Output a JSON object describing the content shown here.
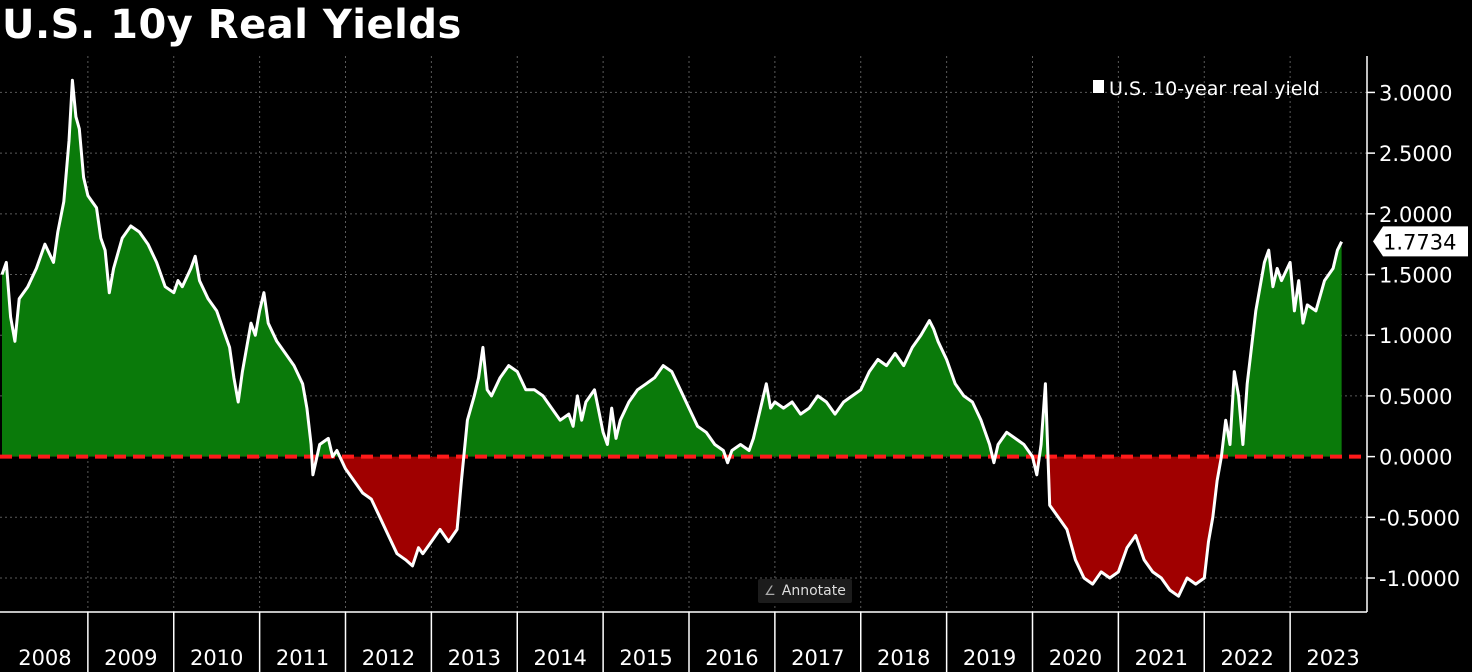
{
  "title": "U.S. 10y Real Yields",
  "annotate_label": "Annotate",
  "last_value_label": "1.7734",
  "colors": {
    "background": "#000000",
    "line": "#ffffff",
    "positive_fill": "#0a7a0a",
    "negative_fill": "#a00000",
    "zero_line": "#ff1a1a",
    "grid": "#5a5a5a"
  },
  "chart_data": {
    "type": "area",
    "title": "U.S. 10y Real Yields",
    "xlabel": "",
    "ylabel": "",
    "legend": {
      "entries": [
        "U.S. 10-year real yield"
      ],
      "position": "top-right"
    },
    "grid": true,
    "ylim": [
      -1.28,
      3.3
    ],
    "yticks": [
      3.0,
      2.5,
      2.0,
      1.5,
      1.0,
      0.5,
      0.0,
      -0.5,
      -1.0
    ],
    "ytick_labels": [
      "3.0000",
      "2.5000",
      "2.0000",
      "1.5000",
      "1.0000",
      "0.5000",
      "0.0000",
      "-0.5000",
      "-1.0000"
    ],
    "x_labels": [
      "2008",
      "2009",
      "2010",
      "2011",
      "2012",
      "2013",
      "2014",
      "2015",
      "2016",
      "2017",
      "2018",
      "2019",
      "2020",
      "2021",
      "2022",
      "2023"
    ],
    "reference_line": {
      "y": 0.0,
      "style": "dashed"
    },
    "last_value": 1.7734,
    "series": [
      {
        "name": "U.S. 10-year real yield",
        "points": [
          [
            2008.0,
            1.5
          ],
          [
            2008.05,
            1.6
          ],
          [
            2008.1,
            1.15
          ],
          [
            2008.15,
            0.95
          ],
          [
            2008.2,
            1.3
          ],
          [
            2008.3,
            1.4
          ],
          [
            2008.4,
            1.55
          ],
          [
            2008.5,
            1.75
          ],
          [
            2008.6,
            1.6
          ],
          [
            2008.65,
            1.85
          ],
          [
            2008.72,
            2.1
          ],
          [
            2008.78,
            2.6
          ],
          [
            2008.82,
            3.1
          ],
          [
            2008.86,
            2.8
          ],
          [
            2008.9,
            2.7
          ],
          [
            2008.95,
            2.3
          ],
          [
            2009.0,
            2.15
          ],
          [
            2009.05,
            2.1
          ],
          [
            2009.1,
            2.05
          ],
          [
            2009.15,
            1.8
          ],
          [
            2009.2,
            1.7
          ],
          [
            2009.25,
            1.35
          ],
          [
            2009.3,
            1.55
          ],
          [
            2009.4,
            1.8
          ],
          [
            2009.5,
            1.9
          ],
          [
            2009.6,
            1.85
          ],
          [
            2009.7,
            1.75
          ],
          [
            2009.8,
            1.6
          ],
          [
            2009.9,
            1.4
          ],
          [
            2010.0,
            1.35
          ],
          [
            2010.05,
            1.45
          ],
          [
            2010.1,
            1.4
          ],
          [
            2010.2,
            1.55
          ],
          [
            2010.25,
            1.65
          ],
          [
            2010.3,
            1.45
          ],
          [
            2010.4,
            1.3
          ],
          [
            2010.5,
            1.2
          ],
          [
            2010.6,
            1.0
          ],
          [
            2010.65,
            0.9
          ],
          [
            2010.7,
            0.65
          ],
          [
            2010.75,
            0.45
          ],
          [
            2010.8,
            0.7
          ],
          [
            2010.85,
            0.9
          ],
          [
            2010.9,
            1.1
          ],
          [
            2010.95,
            1.0
          ],
          [
            2011.0,
            1.2
          ],
          [
            2011.05,
            1.35
          ],
          [
            2011.1,
            1.1
          ],
          [
            2011.2,
            0.95
          ],
          [
            2011.3,
            0.85
          ],
          [
            2011.4,
            0.75
          ],
          [
            2011.5,
            0.6
          ],
          [
            2011.55,
            0.4
          ],
          [
            2011.6,
            0.1
          ],
          [
            2011.62,
            -0.15
          ],
          [
            2011.7,
            0.1
          ],
          [
            2011.8,
            0.15
          ],
          [
            2011.85,
            0.0
          ],
          [
            2011.9,
            0.05
          ],
          [
            2012.0,
            -0.1
          ],
          [
            2012.1,
            -0.2
          ],
          [
            2012.2,
            -0.3
          ],
          [
            2012.3,
            -0.35
          ],
          [
            2012.4,
            -0.5
          ],
          [
            2012.5,
            -0.65
          ],
          [
            2012.6,
            -0.8
          ],
          [
            2012.7,
            -0.85
          ],
          [
            2012.78,
            -0.9
          ],
          [
            2012.85,
            -0.75
          ],
          [
            2012.9,
            -0.8
          ],
          [
            2013.0,
            -0.7
          ],
          [
            2013.1,
            -0.6
          ],
          [
            2013.2,
            -0.7
          ],
          [
            2013.3,
            -0.6
          ],
          [
            2013.35,
            -0.2
          ],
          [
            2013.42,
            0.3
          ],
          [
            2013.5,
            0.5
          ],
          [
            2013.55,
            0.65
          ],
          [
            2013.6,
            0.9
          ],
          [
            2013.65,
            0.55
          ],
          [
            2013.7,
            0.5
          ],
          [
            2013.8,
            0.65
          ],
          [
            2013.9,
            0.75
          ],
          [
            2014.0,
            0.7
          ],
          [
            2014.1,
            0.55
          ],
          [
            2014.2,
            0.55
          ],
          [
            2014.3,
            0.5
          ],
          [
            2014.4,
            0.4
          ],
          [
            2014.5,
            0.3
          ],
          [
            2014.6,
            0.35
          ],
          [
            2014.65,
            0.25
          ],
          [
            2014.7,
            0.5
          ],
          [
            2014.75,
            0.3
          ],
          [
            2014.8,
            0.45
          ],
          [
            2014.9,
            0.55
          ],
          [
            2015.0,
            0.2
          ],
          [
            2015.05,
            0.1
          ],
          [
            2015.1,
            0.4
          ],
          [
            2015.15,
            0.15
          ],
          [
            2015.2,
            0.3
          ],
          [
            2015.3,
            0.45
          ],
          [
            2015.4,
            0.55
          ],
          [
            2015.5,
            0.6
          ],
          [
            2015.6,
            0.65
          ],
          [
            2015.7,
            0.75
          ],
          [
            2015.8,
            0.7
          ],
          [
            2015.9,
            0.55
          ],
          [
            2016.0,
            0.4
          ],
          [
            2016.1,
            0.25
          ],
          [
            2016.2,
            0.2
          ],
          [
            2016.3,
            0.1
          ],
          [
            2016.4,
            0.05
          ],
          [
            2016.45,
            -0.05
          ],
          [
            2016.5,
            0.05
          ],
          [
            2016.6,
            0.1
          ],
          [
            2016.7,
            0.05
          ],
          [
            2016.75,
            0.15
          ],
          [
            2016.8,
            0.3
          ],
          [
            2016.85,
            0.45
          ],
          [
            2016.9,
            0.6
          ],
          [
            2016.95,
            0.4
          ],
          [
            2017.0,
            0.45
          ],
          [
            2017.1,
            0.4
          ],
          [
            2017.2,
            0.45
          ],
          [
            2017.3,
            0.35
          ],
          [
            2017.4,
            0.4
          ],
          [
            2017.5,
            0.5
          ],
          [
            2017.6,
            0.45
          ],
          [
            2017.7,
            0.35
          ],
          [
            2017.8,
            0.45
          ],
          [
            2017.9,
            0.5
          ],
          [
            2018.0,
            0.55
          ],
          [
            2018.1,
            0.7
          ],
          [
            2018.2,
            0.8
          ],
          [
            2018.3,
            0.75
          ],
          [
            2018.4,
            0.85
          ],
          [
            2018.5,
            0.75
          ],
          [
            2018.6,
            0.9
          ],
          [
            2018.7,
            1.0
          ],
          [
            2018.8,
            1.12
          ],
          [
            2018.85,
            1.05
          ],
          [
            2018.9,
            0.95
          ],
          [
            2019.0,
            0.8
          ],
          [
            2019.1,
            0.6
          ],
          [
            2019.2,
            0.5
          ],
          [
            2019.3,
            0.45
          ],
          [
            2019.4,
            0.3
          ],
          [
            2019.5,
            0.1
          ],
          [
            2019.55,
            -0.05
          ],
          [
            2019.6,
            0.1
          ],
          [
            2019.7,
            0.2
          ],
          [
            2019.8,
            0.15
          ],
          [
            2019.9,
            0.1
          ],
          [
            2020.0,
            0.0
          ],
          [
            2020.05,
            -0.15
          ],
          [
            2020.1,
            0.1
          ],
          [
            2020.15,
            0.6
          ],
          [
            2020.2,
            -0.4
          ],
          [
            2020.3,
            -0.5
          ],
          [
            2020.4,
            -0.6
          ],
          [
            2020.5,
            -0.85
          ],
          [
            2020.6,
            -1.0
          ],
          [
            2020.7,
            -1.05
          ],
          [
            2020.8,
            -0.95
          ],
          [
            2020.9,
            -1.0
          ],
          [
            2021.0,
            -0.95
          ],
          [
            2021.1,
            -0.75
          ],
          [
            2021.2,
            -0.65
          ],
          [
            2021.3,
            -0.85
          ],
          [
            2021.4,
            -0.95
          ],
          [
            2021.5,
            -1.0
          ],
          [
            2021.6,
            -1.1
          ],
          [
            2021.7,
            -1.15
          ],
          [
            2021.8,
            -1.0
          ],
          [
            2021.9,
            -1.05
          ],
          [
            2022.0,
            -1.0
          ],
          [
            2022.05,
            -0.7
          ],
          [
            2022.1,
            -0.5
          ],
          [
            2022.15,
            -0.2
          ],
          [
            2022.2,
            0.0
          ],
          [
            2022.25,
            0.3
          ],
          [
            2022.3,
            0.1
          ],
          [
            2022.35,
            0.7
          ],
          [
            2022.4,
            0.5
          ],
          [
            2022.45,
            0.1
          ],
          [
            2022.5,
            0.6
          ],
          [
            2022.55,
            0.9
          ],
          [
            2022.6,
            1.2
          ],
          [
            2022.7,
            1.6
          ],
          [
            2022.75,
            1.7
          ],
          [
            2022.8,
            1.4
          ],
          [
            2022.85,
            1.55
          ],
          [
            2022.9,
            1.45
          ],
          [
            2023.0,
            1.6
          ],
          [
            2023.05,
            1.2
          ],
          [
            2023.1,
            1.45
          ],
          [
            2023.15,
            1.1
          ],
          [
            2023.2,
            1.25
          ],
          [
            2023.3,
            1.2
          ],
          [
            2023.4,
            1.45
          ],
          [
            2023.5,
            1.55
          ],
          [
            2023.55,
            1.7
          ],
          [
            2023.6,
            1.77
          ]
        ]
      }
    ]
  }
}
